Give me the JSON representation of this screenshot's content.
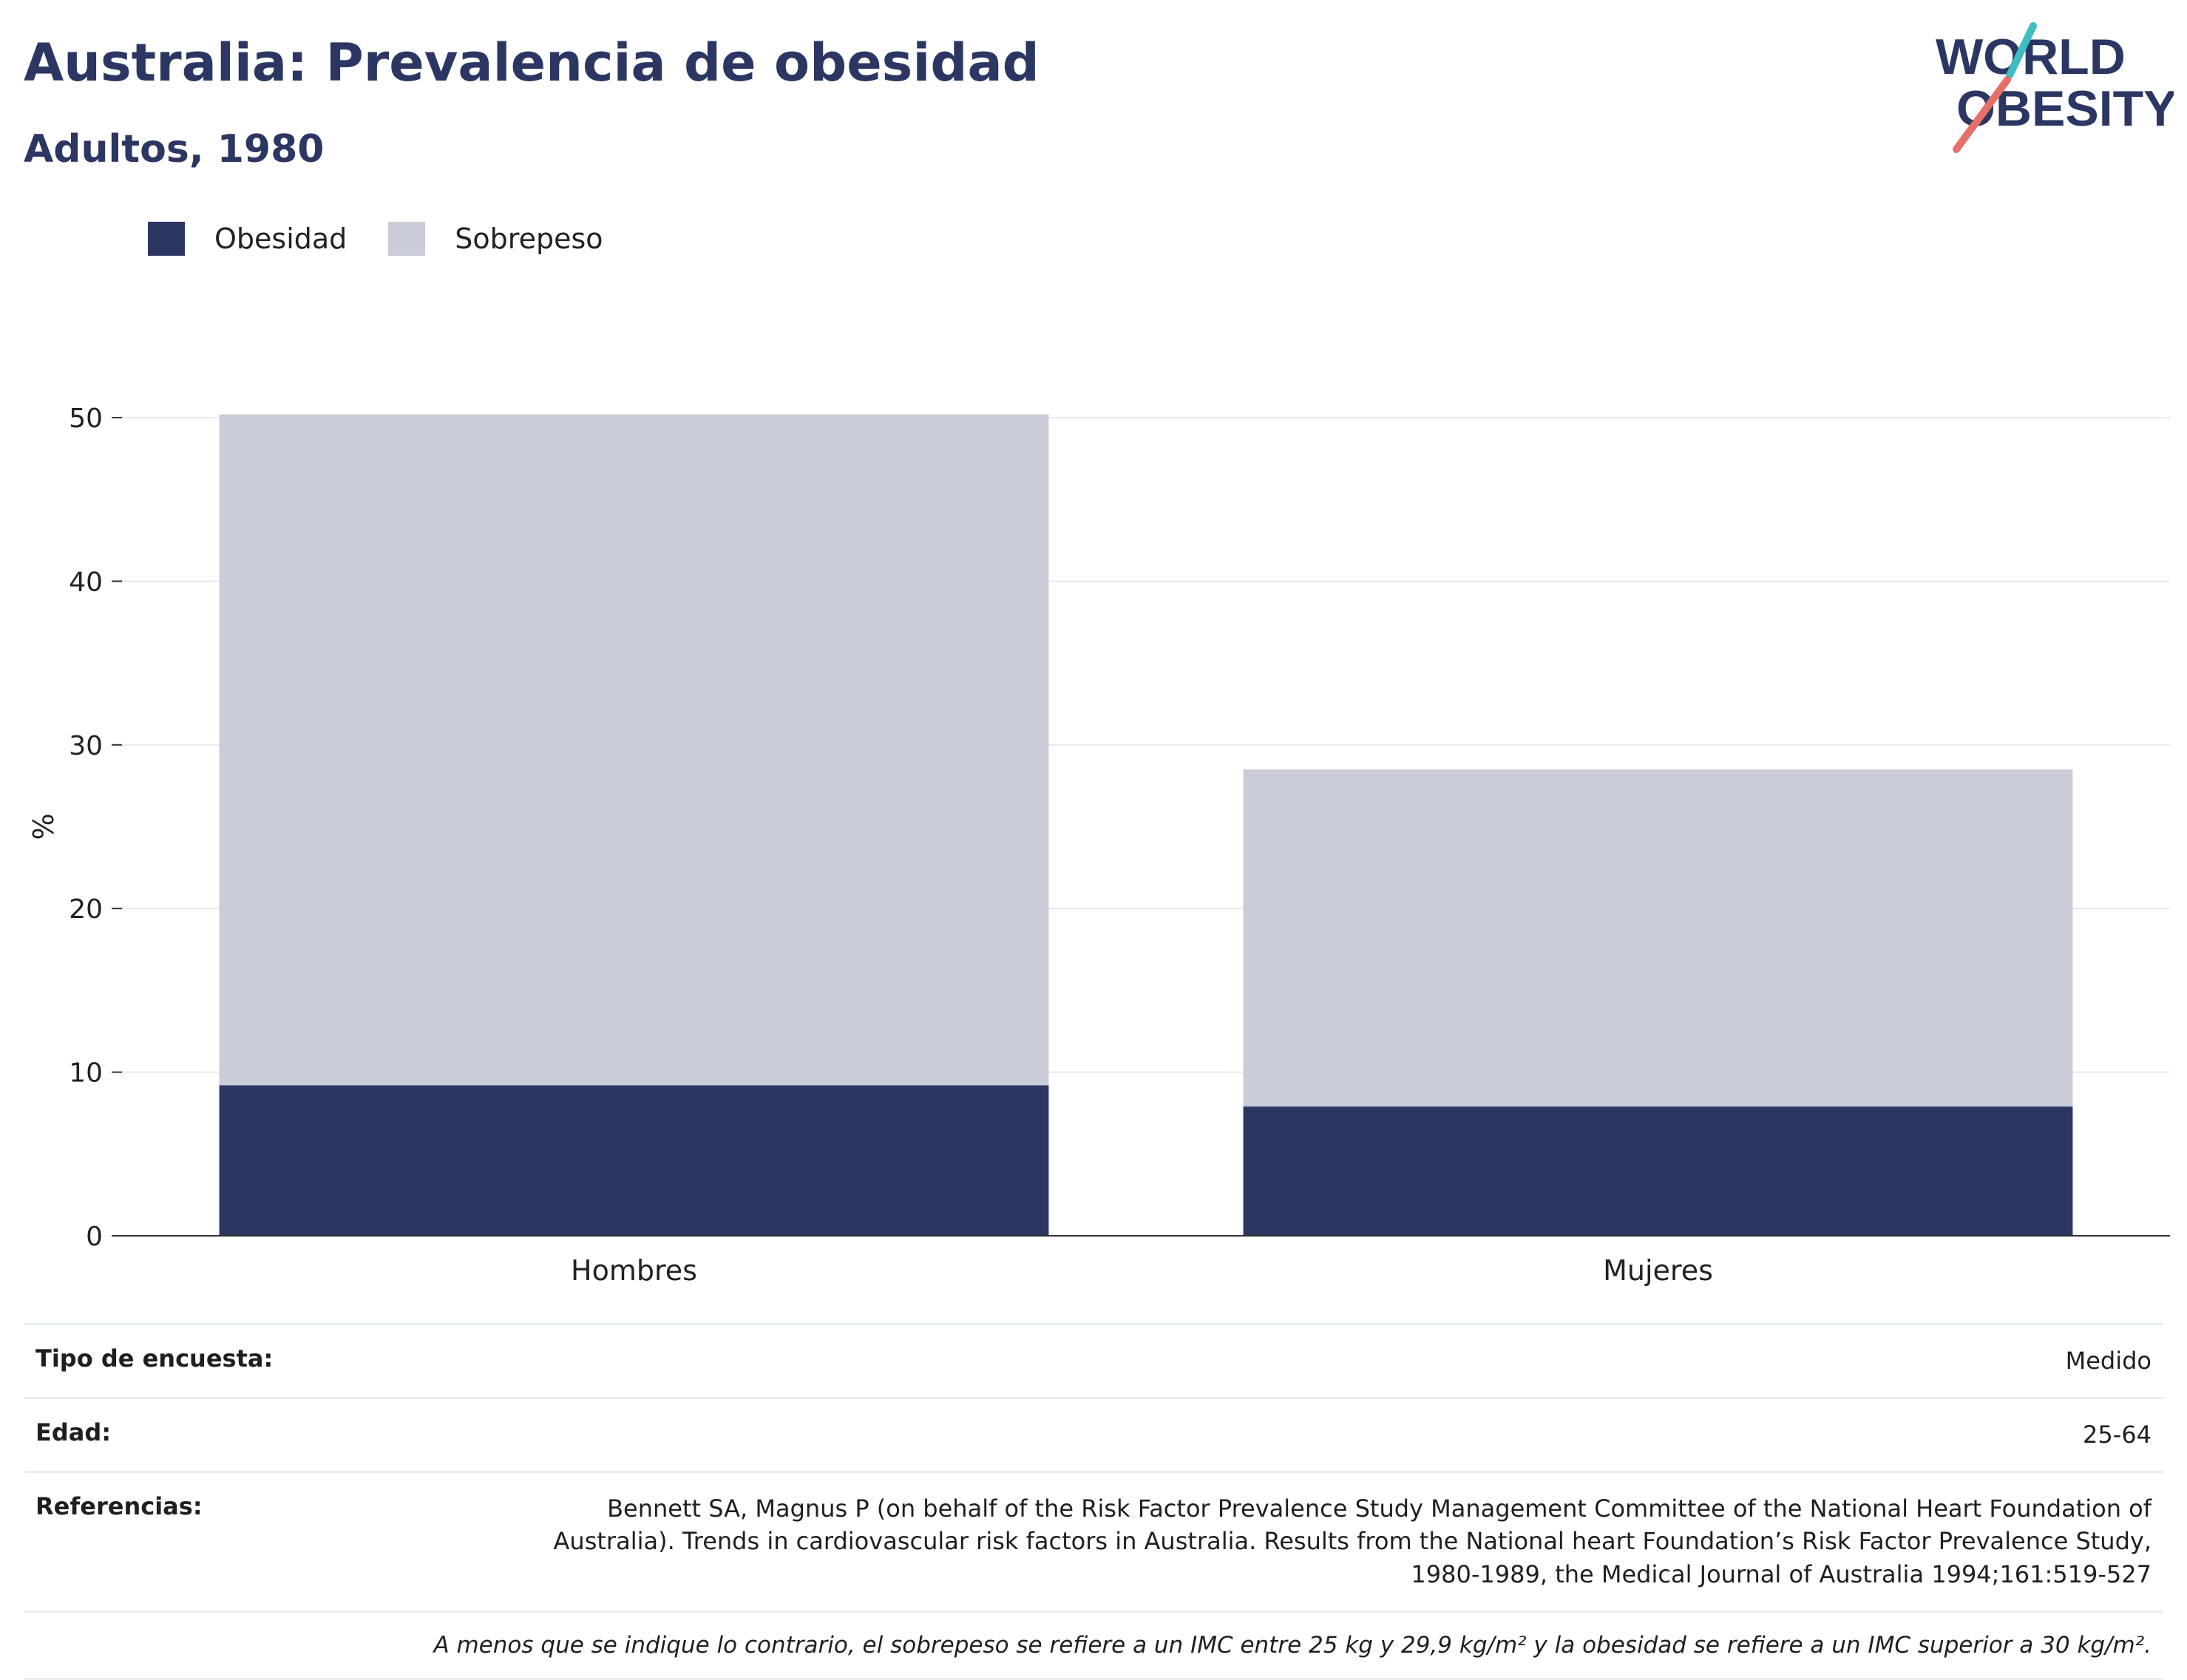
{
  "header": {
    "title": "Australia: Prevalencia de obesidad",
    "subtitle": "Adultos, 1980"
  },
  "logo": {
    "line1": "WORLD",
    "line2": "OBESITY",
    "accent_colors": [
      "#3fbcc4",
      "#e5706a"
    ]
  },
  "chart_data": {
    "type": "bar",
    "stacked": true,
    "categories": [
      "Hombres",
      "Mujeres"
    ],
    "series": [
      {
        "name": "Obesidad",
        "values": [
          9.2,
          7.9
        ],
        "color": "#2b3663"
      },
      {
        "name": "Sobrepeso",
        "values": [
          41.0,
          20.6
        ],
        "color": "#cacdd8"
      }
    ],
    "ylabel": "%",
    "ylim": [
      0,
      50
    ],
    "yticks": [
      0,
      10,
      20,
      30,
      40,
      50
    ],
    "grid": true,
    "legend": "top-left"
  },
  "info": {
    "survey_label": "Tipo de encuesta:",
    "survey_value": "Medido",
    "age_label": "Edad:",
    "age_value": "25-64",
    "refs_label": "Referencias:",
    "refs_value": "Bennett SA, Magnus P (on behalf of the Risk Factor Prevalence Study Management Committee of the National Heart Foundation of Australia). Trends in cardiovascular risk factors in Australia. Results from the National heart Foundation’s Risk Factor Prevalence Study, 1980-1989, the Medical Journal of Australia 1994;161:519-527",
    "note": "A menos que se indique lo contrario, el sobrepeso se refiere a un IMC entre 25 kg y 29,9 kg/m² y la obesidad se refiere a un IMC superior a 30 kg/m²."
  }
}
